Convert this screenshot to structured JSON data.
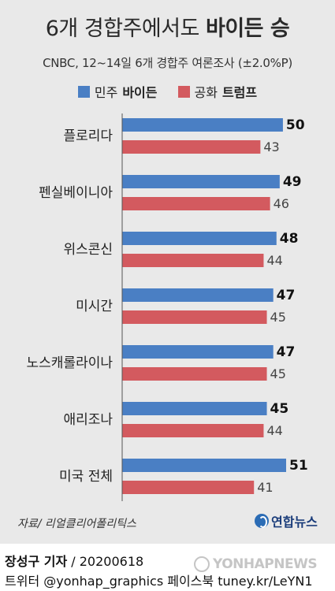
{
  "header": {
    "title_prefix": "6개 경합주에서도 ",
    "title_bold": "바이든 승",
    "subtitle": "CNBC, 12~14일  6개 경합주 여론조사 (±2.0%P)"
  },
  "legend": [
    {
      "party": "민주 ",
      "candidate": "바이든",
      "color": "#4a7fc4"
    },
    {
      "party": "공화 ",
      "candidate": "트럼프",
      "color": "#d35a5f"
    }
  ],
  "chart_data": {
    "type": "bar",
    "orientation": "horizontal",
    "title": "6개 경합주에서도 바이든 승",
    "subtitle": "CNBC, 12~14일  6개 경합주 여론조사 (±2.0%P)",
    "categories": [
      "플로리다",
      "펜실베이니아",
      "위스콘신",
      "미시간",
      "노스캐롤라이나",
      "애리조나",
      "미국 전체"
    ],
    "series": [
      {
        "name": "민주 바이든",
        "color": "#4a7fc4",
        "values": [
          50,
          49,
          48,
          47,
          47,
          45,
          51
        ]
      },
      {
        "name": "공화 트럼프",
        "color": "#d35a5f",
        "values": [
          43,
          46,
          44,
          45,
          45,
          44,
          41
        ]
      }
    ],
    "xlim": [
      0,
      51
    ],
    "legend_position": "top",
    "grid": false
  },
  "source": "자료/ 리얼클리어폴리틱스",
  "logo_text": "연합뉴스",
  "footer": {
    "author": "장성구 기자",
    "date": " / 20200618",
    "social": "트위터 @yonhap_graphics  페이스북 tuney.kr/LeYN1"
  },
  "watermark": "YONHAPNEWS"
}
